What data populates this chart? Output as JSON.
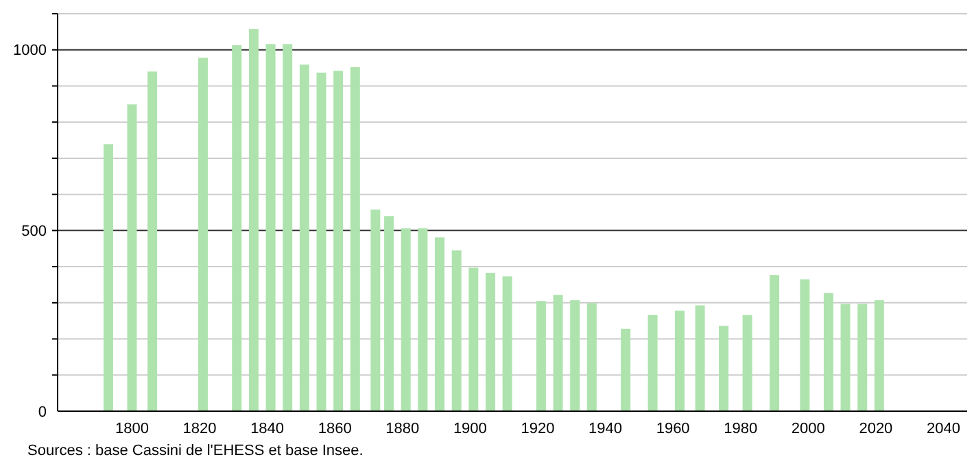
{
  "chart_data": {
    "type": "bar",
    "x": [
      1793,
      1800,
      1806,
      1821,
      1831,
      1836,
      1841,
      1846,
      1851,
      1856,
      1861,
      1866,
      1872,
      1876,
      1881,
      1886,
      1891,
      1896,
      1901,
      1906,
      1911,
      1921,
      1926,
      1931,
      1936,
      1946,
      1954,
      1962,
      1968,
      1975,
      1982,
      1990,
      1999,
      2006,
      2011,
      2016,
      2021
    ],
    "values": [
      739,
      849,
      940,
      978,
      1013,
      1058,
      1016,
      1016,
      959,
      937,
      942,
      952,
      558,
      540,
      506,
      506,
      481,
      445,
      397,
      383,
      373,
      305,
      322,
      307,
      299,
      228,
      266,
      278,
      293,
      236,
      266,
      377,
      365,
      327,
      297,
      297,
      307
    ],
    "color": "#aee3ae",
    "xlim": [
      1778,
      2047
    ],
    "xticks": [
      1800,
      1820,
      1840,
      1860,
      1880,
      1900,
      1920,
      1940,
      1960,
      1980,
      2000,
      2020,
      2040
    ],
    "ylim": [
      0,
      1100
    ],
    "yticks": [
      0,
      {
        "value": 100,
        "label": null
      },
      {
        "value": 200,
        "label": null
      },
      {
        "value": 300,
        "label": null
      },
      {
        "value": 400,
        "label": null
      },
      500,
      {
        "value": 600,
        "label": null
      },
      {
        "value": 700,
        "label": null
      },
      {
        "value": 800,
        "label": null
      },
      {
        "value": 900,
        "label": null
      },
      1000,
      {
        "value": 1100,
        "label": null
      }
    ],
    "grid": "y",
    "annotations": [
      "Sources : base Cassini de l'EHESS et base Insee."
    ]
  }
}
